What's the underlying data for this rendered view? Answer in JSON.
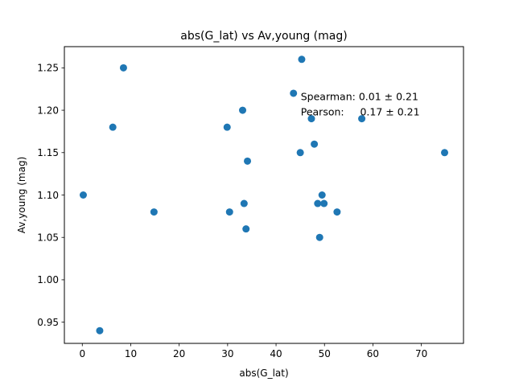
{
  "chart_data": {
    "type": "scatter",
    "title": "abs(G_lat) vs Av,young (mag)",
    "xlabel": "abs(G_lat)",
    "ylabel": "Av,young (mag)",
    "xlim": [
      -3.7,
      78.7
    ],
    "ylim": [
      0.925,
      1.275
    ],
    "xticks": [
      0,
      10,
      20,
      30,
      40,
      50,
      60,
      70
    ],
    "yticks": [
      0.95,
      1.0,
      1.05,
      1.1,
      1.15,
      1.2,
      1.25
    ],
    "yticklabels": [
      "0.95",
      "1.00",
      "1.05",
      "1.10",
      "1.15",
      "1.20",
      "1.25"
    ],
    "grid": false,
    "marker_color": "#1f77b4",
    "points": [
      {
        "x": 0.2,
        "y": 1.1
      },
      {
        "x": 3.6,
        "y": 0.94
      },
      {
        "x": 6.3,
        "y": 1.18
      },
      {
        "x": 8.5,
        "y": 1.25
      },
      {
        "x": 14.8,
        "y": 1.08
      },
      {
        "x": 29.9,
        "y": 1.18
      },
      {
        "x": 30.4,
        "y": 1.08
      },
      {
        "x": 33.1,
        "y": 1.2
      },
      {
        "x": 33.4,
        "y": 1.09
      },
      {
        "x": 33.8,
        "y": 1.06
      },
      {
        "x": 34.1,
        "y": 1.14
      },
      {
        "x": 43.6,
        "y": 1.22
      },
      {
        "x": 45.0,
        "y": 1.15
      },
      {
        "x": 45.3,
        "y": 1.26
      },
      {
        "x": 47.3,
        "y": 1.19
      },
      {
        "x": 47.9,
        "y": 1.16
      },
      {
        "x": 48.6,
        "y": 1.09
      },
      {
        "x": 49.0,
        "y": 1.05
      },
      {
        "x": 49.5,
        "y": 1.1
      },
      {
        "x": 49.9,
        "y": 1.09
      },
      {
        "x": 52.6,
        "y": 1.08
      },
      {
        "x": 57.7,
        "y": 1.19
      },
      {
        "x": 74.8,
        "y": 1.15
      }
    ],
    "annotations": [
      {
        "text": "Spearman: 0.01 ± 0.21",
        "x": 45.1,
        "y": 1.212
      },
      {
        "text": "Pearson:     0.17 ± 0.21",
        "x": 45.1,
        "y": 1.194
      }
    ]
  }
}
